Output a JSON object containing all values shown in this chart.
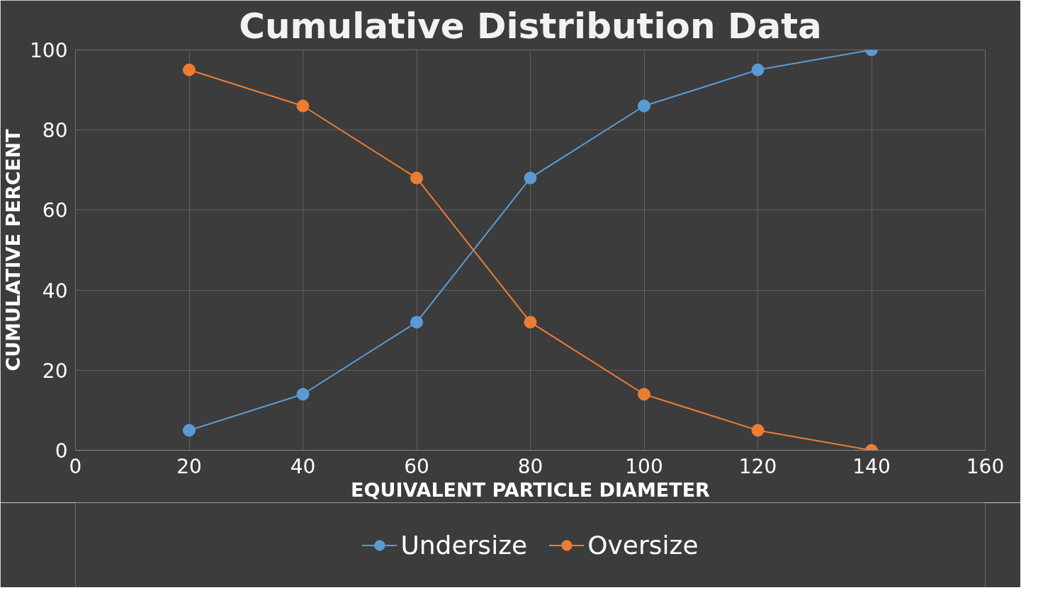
{
  "chart_data": {
    "type": "line",
    "title": "Cumulative Distribution Data",
    "xlabel": "EQUIVALENT PARTICLE DIAMETER",
    "ylabel": "CUMULATIVE PERCENT",
    "x": [
      20,
      40,
      60,
      80,
      100,
      120,
      140
    ],
    "series": [
      {
        "name": "Undersize",
        "color": "#5b9bd5",
        "values": [
          5,
          14,
          32,
          68,
          86,
          95,
          100
        ]
      },
      {
        "name": "Oversize",
        "color": "#ed7d31",
        "values": [
          95,
          86,
          68,
          32,
          14,
          5,
          0
        ]
      }
    ],
    "xlim": [
      0,
      160
    ],
    "xticks": [
      0,
      20,
      40,
      60,
      80,
      100,
      120,
      140,
      160
    ],
    "ylim": [
      0,
      100
    ],
    "yticks": [
      0,
      20,
      40,
      60,
      80,
      100
    ],
    "grid": true,
    "legend": "bottom",
    "marker": "circle",
    "line_style": "solid"
  }
}
